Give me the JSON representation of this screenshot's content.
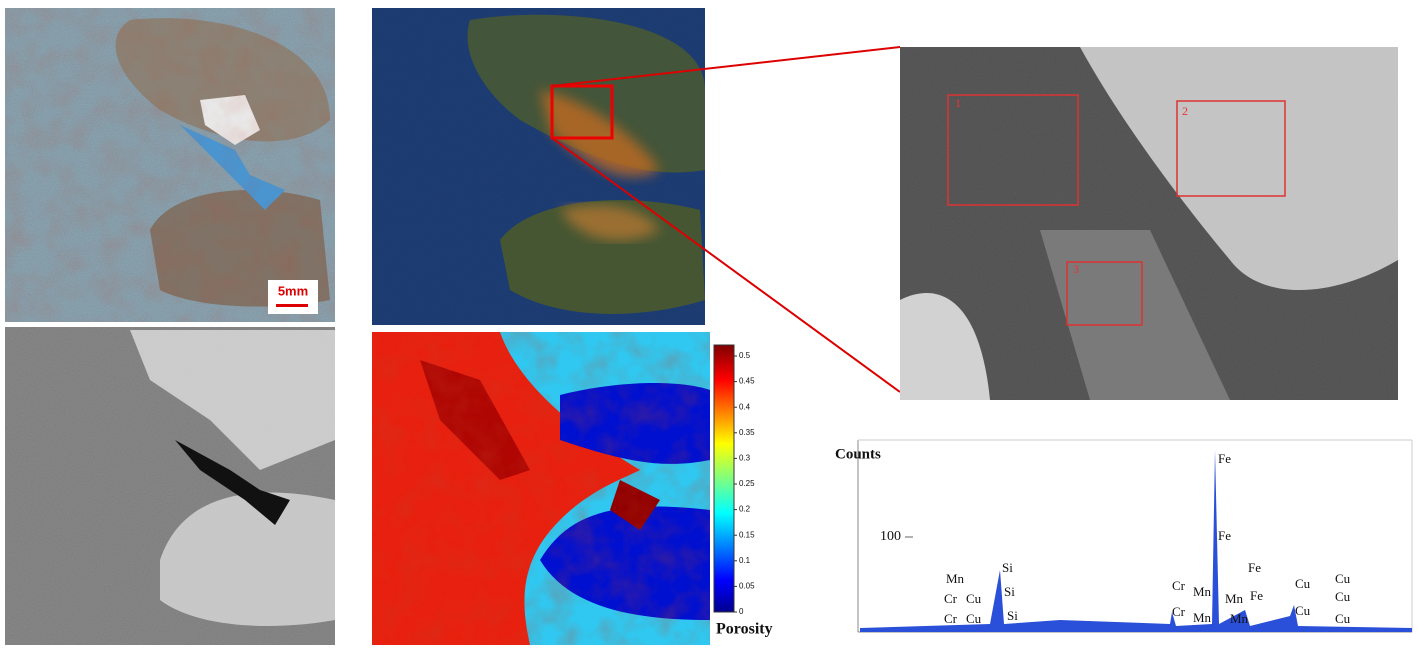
{
  "scale_bar": "5mm",
  "porosity_map": {
    "colorbar_ticks": [
      "0",
      "0.05",
      "0.1",
      "0.15",
      "0.2",
      "0.25",
      "0.3",
      "0.35",
      "0.4",
      "0.45",
      "0.5"
    ],
    "label": "Porosity"
  },
  "sem": {
    "regions": [
      "1",
      "2",
      "3"
    ]
  },
  "eds": {
    "y_label": "Counts",
    "ytick": "100",
    "peak_labels": [
      "Mn",
      "Cr",
      "Cu",
      "Cr",
      "Cu",
      "Si",
      "Si",
      "Si",
      "Cr",
      "Mn",
      "Cr",
      "Mn",
      "Fe",
      "Fe",
      "Fe",
      "Mn",
      "Fe",
      "Mn",
      "Cu",
      "Cu",
      "Cu",
      "Cu",
      "Cu"
    ]
  }
}
